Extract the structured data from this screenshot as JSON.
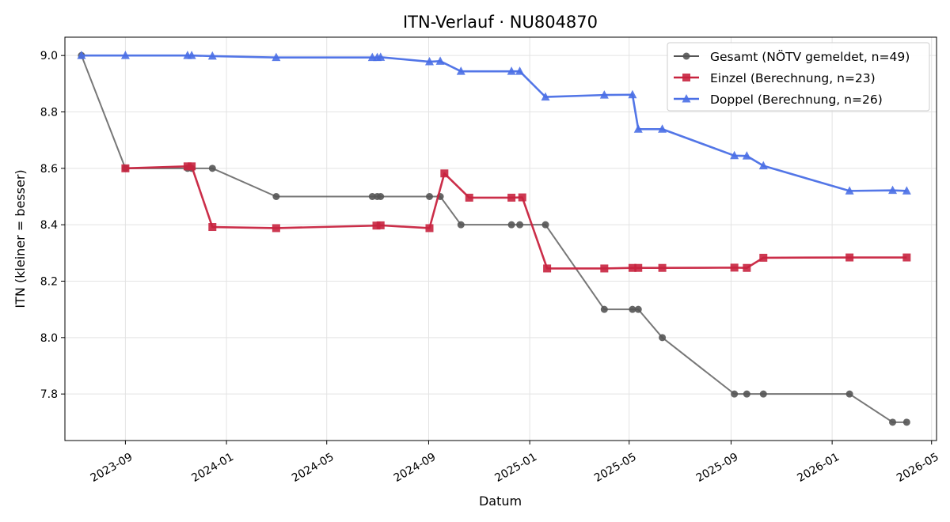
{
  "chart_data": {
    "type": "line",
    "title": "ITN-Verlauf · NU804870",
    "xlabel": "Datum",
    "ylabel": "ITN  (kleiner = besser)",
    "x_ticks": [
      "2023-09",
      "2024-01",
      "2024-05",
      "2024-09",
      "2025-01",
      "2025-05",
      "2025-09",
      "2026-01",
      "2026-05"
    ],
    "xlim": [
      "2023-06-20",
      "2026-05-07"
    ],
    "y_ticks": [
      "7.8",
      "8.0",
      "8.2",
      "8.4",
      "8.6",
      "8.8",
      "9.0"
    ],
    "ylim": [
      7.635,
      9.065
    ],
    "grid": true,
    "legend_position": "top-right",
    "series": [
      {
        "name": "Gesamt (NÖTV gemeldet, n=49)",
        "color": "#555555",
        "marker": "circle",
        "x": [
          "2023-07-10",
          "2023-09-01",
          "2023-11-15",
          "2023-11-20",
          "2023-12-15",
          "2024-03-01",
          "2024-06-25",
          "2024-07-01",
          "2024-07-05",
          "2024-09-02",
          "2024-09-15",
          "2024-10-10",
          "2024-12-10",
          "2024-12-20",
          "2025-01-20",
          "2025-04-01",
          "2025-05-05",
          "2025-05-12",
          "2025-06-10",
          "2025-09-05",
          "2025-09-20",
          "2025-10-10",
          "2026-01-22",
          "2026-03-15",
          "2026-04-01"
        ],
        "y": [
          9.0,
          8.6,
          8.6,
          8.6,
          8.6,
          8.5,
          8.5,
          8.5,
          8.5,
          8.5,
          8.5,
          8.4,
          8.4,
          8.4,
          8.4,
          8.1,
          8.1,
          8.1,
          8.0,
          7.8,
          7.8,
          7.8,
          7.8,
          7.7,
          7.7
        ]
      },
      {
        "name": "Einzel (Berechnung, n=23)",
        "color": "#c8233f",
        "marker": "square",
        "x": [
          "2023-09-01",
          "2023-11-15",
          "2023-11-20",
          "2023-12-15",
          "2024-03-01",
          "2024-06-30",
          "2024-07-05",
          "2024-09-02",
          "2024-09-20",
          "2024-10-20",
          "2024-12-10",
          "2024-12-23",
          "2025-01-22",
          "2025-04-01",
          "2025-05-05",
          "2025-05-12",
          "2025-06-10",
          "2025-09-05",
          "2025-09-20",
          "2025-10-10",
          "2026-01-22",
          "2026-04-01"
        ],
        "y": [
          8.6,
          8.607,
          8.607,
          8.392,
          8.388,
          8.397,
          8.398,
          8.388,
          8.582,
          8.496,
          8.496,
          8.497,
          8.245,
          8.245,
          8.247,
          8.247,
          8.247,
          8.248,
          8.247,
          8.283,
          8.284,
          8.284
        ]
      },
      {
        "name": "Doppel (Berechnung, n=26)",
        "color": "#4a6fe6",
        "marker": "triangle",
        "x": [
          "2023-07-10",
          "2023-09-01",
          "2023-11-15",
          "2023-11-20",
          "2023-12-15",
          "2024-03-01",
          "2024-06-25",
          "2024-07-01",
          "2024-07-05",
          "2024-09-02",
          "2024-09-15",
          "2024-10-10",
          "2024-12-10",
          "2024-12-20",
          "2025-01-20",
          "2025-04-01",
          "2025-05-05",
          "2025-05-12",
          "2025-06-10",
          "2025-09-05",
          "2025-09-20",
          "2025-10-10",
          "2026-01-22",
          "2026-03-15",
          "2026-04-01"
        ],
        "y": [
          9.0,
          9.0,
          9.0,
          9.0,
          8.998,
          8.993,
          8.993,
          8.993,
          8.994,
          8.978,
          8.98,
          8.944,
          8.944,
          8.944,
          8.853,
          8.86,
          8.861,
          8.739,
          8.739,
          8.645,
          8.644,
          8.609,
          8.52,
          8.522,
          8.52
        ]
      }
    ]
  }
}
